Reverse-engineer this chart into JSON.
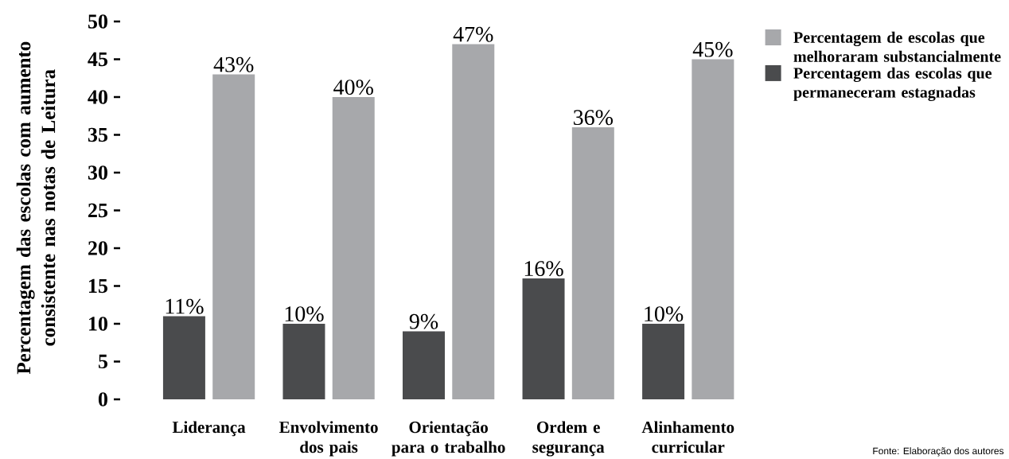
{
  "chart_data": {
    "type": "bar",
    "ylabel": "Percentagem das escolas com aumento consistente nas notas de Leitura",
    "categories": [
      "Liderança",
      "Envolvimento dos pais",
      "Orientação para o trabalho",
      "Ordem e segurança",
      "Alinhamento curricular"
    ],
    "series": [
      {
        "name": "Percentagem das escolas que permaneceram estagnadas",
        "color": "#4a4b4d",
        "values": [
          11,
          10,
          9,
          16,
          10
        ],
        "value_labels": [
          "11%",
          "10%",
          "9%",
          "16%",
          "10%"
        ]
      },
      {
        "name": "Percentagem de escolas que melhoraram substancialmente",
        "color": "#a7a8ab",
        "values": [
          43,
          40,
          47,
          36,
          45
        ],
        "value_labels": [
          "43%",
          "40%",
          "47%",
          "36%",
          "45%"
        ]
      }
    ],
    "ylim": [
      0,
      50
    ],
    "yticks": [
      0,
      5,
      10,
      15,
      20,
      25,
      30,
      35,
      40,
      45,
      50
    ],
    "legend": "top right",
    "annotations": [
      "Fonte: Elaboração dos autores"
    ]
  }
}
